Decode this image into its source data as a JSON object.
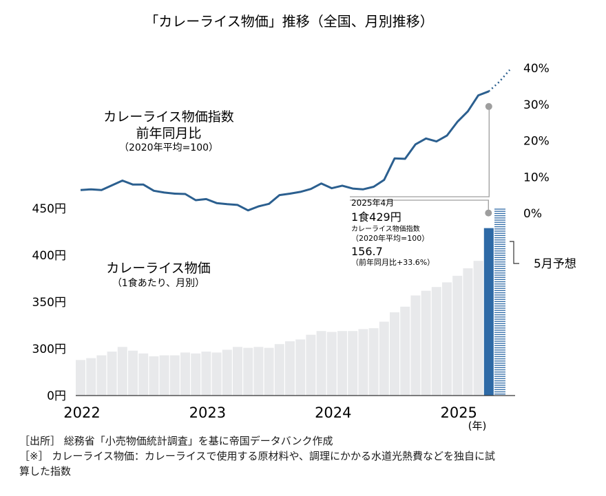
{
  "chart_data": {
    "type": "bar",
    "title": "「カレーライス物価」推移（全国、月別推移）",
    "x_year_labels": [
      "2022",
      "2023",
      "2024",
      "2025"
    ],
    "x_unit": "(年)",
    "bars": {
      "series_name": "カレーライス物価",
      "series_subtitle": "（1食あたり、月別）",
      "unit": "円",
      "y_ticks": [
        "0円",
        "300円",
        "350円",
        "400円",
        "450円"
      ],
      "ylim": [
        250,
        450
      ],
      "months": [
        "2022-01",
        "2022-02",
        "2022-03",
        "2022-04",
        "2022-05",
        "2022-06",
        "2022-07",
        "2022-08",
        "2022-09",
        "2022-10",
        "2022-11",
        "2022-12",
        "2023-01",
        "2023-02",
        "2023-03",
        "2023-04",
        "2023-05",
        "2023-06",
        "2023-07",
        "2023-08",
        "2023-09",
        "2023-10",
        "2023-11",
        "2023-12",
        "2024-01",
        "2024-02",
        "2024-03",
        "2024-04",
        "2024-05",
        "2024-06",
        "2024-07",
        "2024-08",
        "2024-09",
        "2024-10",
        "2024-11",
        "2024-12",
        "2025-01",
        "2025-02",
        "2025-03",
        "2025-04"
      ],
      "values": [
        288,
        290,
        293,
        297,
        302,
        298,
        295,
        292,
        293,
        293,
        296,
        295,
        297,
        296,
        299,
        302,
        301,
        302,
        301,
        305,
        308,
        310,
        315,
        319,
        318,
        319,
        319,
        321,
        322,
        329,
        339,
        345,
        357,
        362,
        366,
        371,
        378,
        386,
        394,
        429
      ],
      "forecast": {
        "label": "5月予想",
        "value": 450
      }
    },
    "line": {
      "series_name": "カレーライス物価指数",
      "series_subtitle": "前年同月比",
      "series_note": "（2020年平均=100）",
      "unit": "%",
      "y_ticks": [
        "0%",
        "10%",
        "20%",
        "30%",
        "40%"
      ],
      "ylim": [
        0,
        40
      ],
      "values": [
        6.4,
        6.6,
        6.4,
        7.7,
        9.0,
        7.9,
        7.9,
        6.2,
        5.7,
        5.4,
        5.3,
        3.6,
        3.9,
        2.8,
        2.5,
        2.3,
        0.8,
        1.9,
        2.6,
        5.0,
        5.4,
        5.9,
        6.7,
        8.2,
        6.9,
        7.6,
        6.8,
        6.6,
        7.3,
        9.2,
        15.1,
        15.0,
        19.0,
        20.6,
        19.8,
        21.4,
        25.2,
        28.1,
        32.5,
        33.6
      ],
      "forecast_values": [
        36.2,
        39.5
      ]
    },
    "annotation": {
      "date": "2025年4月",
      "price": "1食429円",
      "index_label": "カレーライス物価指数",
      "index_base": "（2020年平均=100）",
      "index_value": "156.7",
      "yoy": "（前年同月比+33.6%）"
    }
  },
  "footnotes": [
    "［出所］ 総務省「小売物価統計調査」を基に帝国データバンク作成",
    "［※］ カレーライス物価：カレーライスで使用する原材料や、調理にかかる水道光熱費などを独自に試",
    "算した指数"
  ],
  "colors": {
    "bar": "#e8e9eb",
    "bar_highlight": "#2e6aa6",
    "line": "#2b5f8f",
    "forecast_stripe": "#2e6aa6",
    "marker": "#9e9e9e"
  }
}
